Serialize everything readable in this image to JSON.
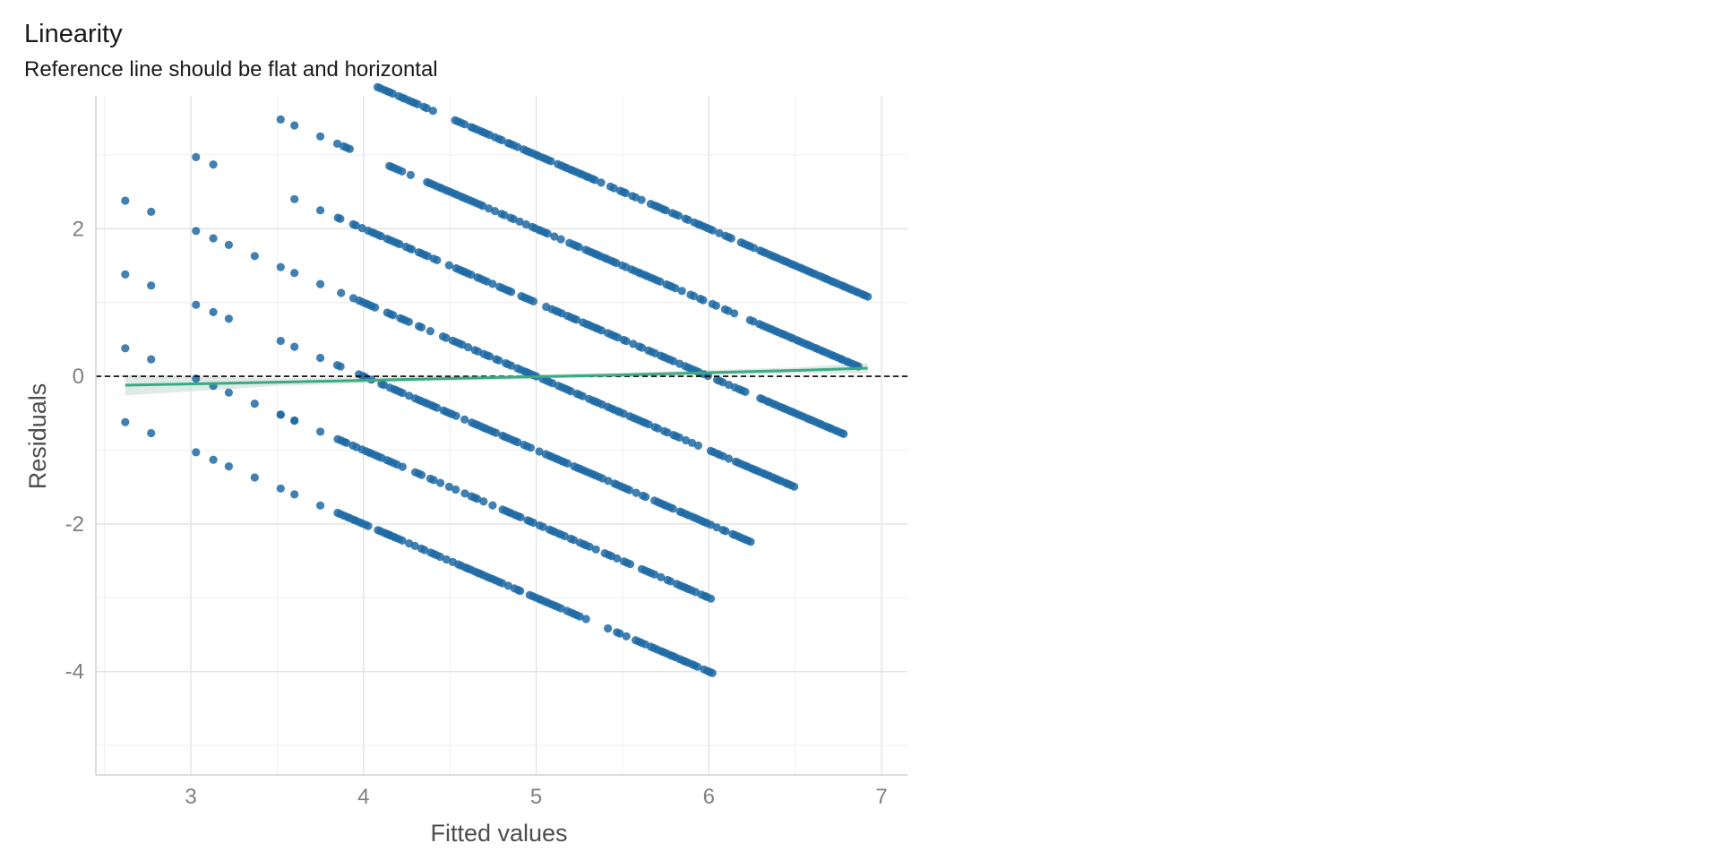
{
  "chart_data": {
    "type": "scatter",
    "title": "Linearity",
    "subtitle": "Reference line should be flat and horizontal",
    "xlabel": "Fitted values",
    "ylabel": "Residuals",
    "xlim": [
      2.45,
      7.15
    ],
    "ylim": [
      -5.4,
      3.8
    ],
    "x_ticks": [
      3,
      4,
      5,
      6,
      7
    ],
    "y_ticks": [
      -4,
      -2,
      0,
      2
    ],
    "x_tick_labels": [
      "3",
      "4",
      "5",
      "6",
      "7"
    ],
    "y_tick_labels": [
      "-4",
      "-2",
      "0",
      "2"
    ],
    "grid": true,
    "reference_line": {
      "y": 0,
      "style": "dashed"
    },
    "point_color": "#1f6aa5",
    "smooth_color": "#3aaa80",
    "points_description": "residual bands of integer outcome values",
    "bands": [
      {
        "intercept": 5,
        "x_range": [
          2.62,
          2.77
        ]
      },
      {
        "intercept": 4,
        "x_range": [
          2.62,
          3.22
        ]
      },
      {
        "intercept": 3,
        "x_range": [
          2.62,
          3.65
        ]
      },
      {
        "intercept": 2,
        "x_range": [
          2.62,
          4.15
        ]
      },
      {
        "intercept": 6,
        "x_range": [
          3.03,
          3.13
        ]
      },
      {
        "intercept": 7,
        "x_range": [
          3.52,
          3.92
        ]
      },
      {
        "intercept": 8,
        "x_range": [
          4.08,
          6.92
        ]
      },
      {
        "intercept": 7,
        "x_range": [
          4.15,
          6.87
        ]
      },
      {
        "intercept": 6,
        "x_range": [
          3.6,
          6.78
        ]
      },
      {
        "intercept": 5,
        "x_range": [
          3.02,
          6.5
        ]
      },
      {
        "intercept": 4,
        "x_range": [
          3.5,
          6.25
        ]
      },
      {
        "intercept": 3,
        "x_range": [
          3.5,
          6.02
        ]
      },
      {
        "intercept": 2,
        "x_range": [
          4.1,
          6.02
        ]
      }
    ],
    "smooth_line": {
      "x": [
        2.62,
        3.5,
        4.5,
        5.5,
        6.5,
        6.92
      ],
      "y": [
        -0.12,
        -0.08,
        -0.03,
        0.02,
        0.08,
        0.11
      ],
      "band_halfwidth": [
        0.14,
        0.05,
        0.03,
        0.03,
        0.04,
        0.07
      ]
    }
  }
}
